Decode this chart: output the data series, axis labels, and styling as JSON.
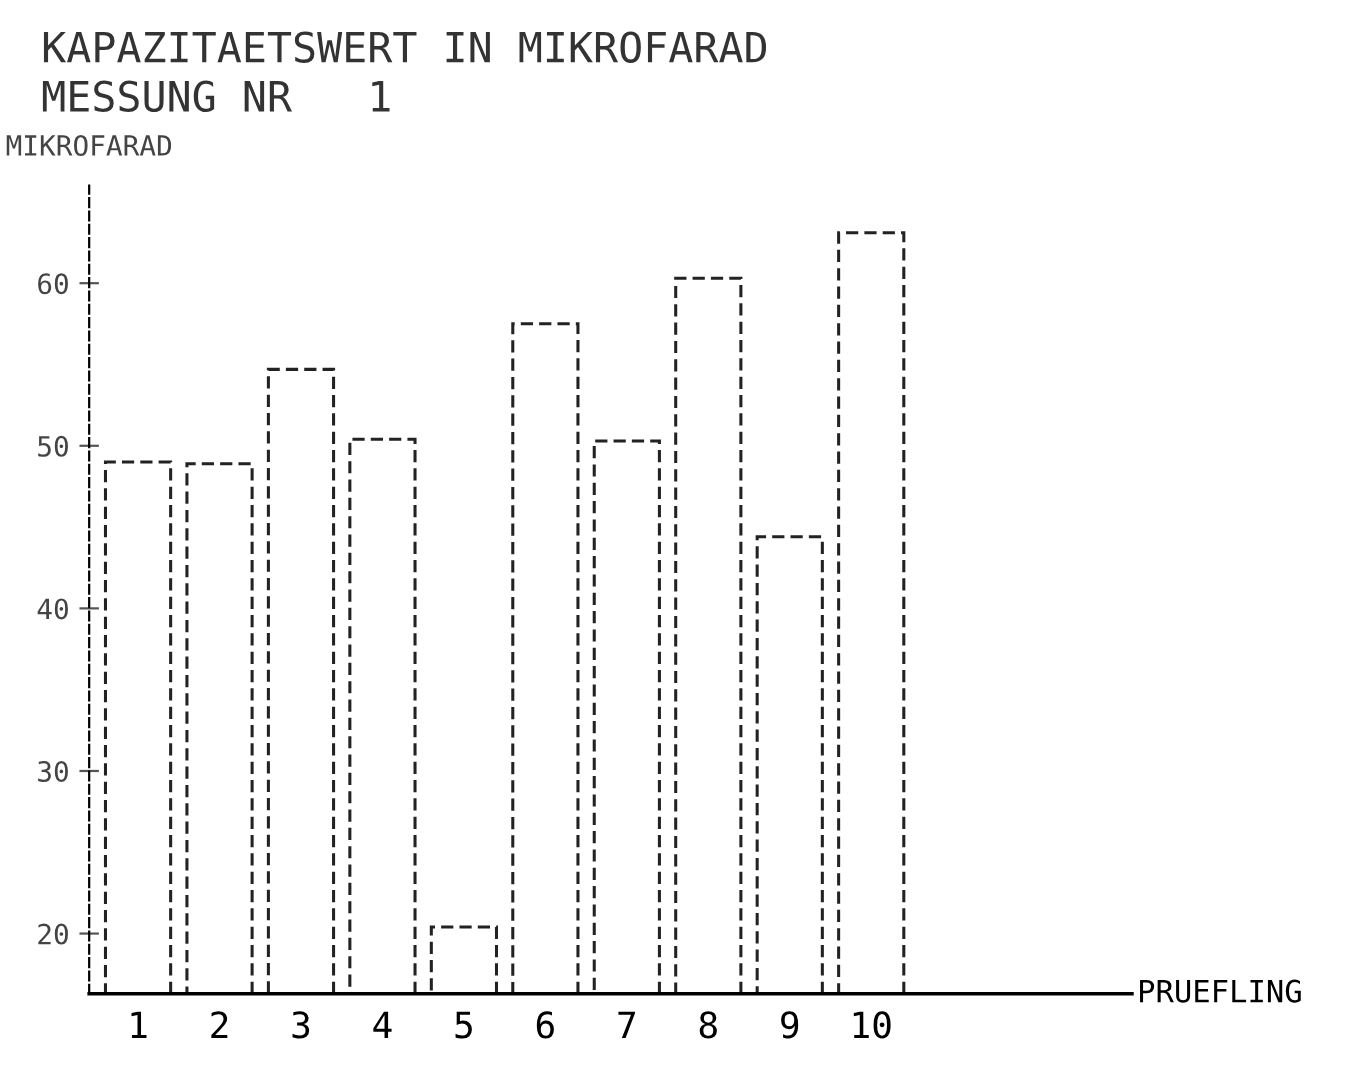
{
  "chart_data": {
    "type": "bar",
    "title": "KAPAZITAETSWERT IN MIKROFARAD",
    "subtitle": "MESSUNG NR   1",
    "ylabel": "MIKROFARAD",
    "annotations": [
      "PRUEFLING"
    ],
    "categories": [
      "1",
      "2",
      "3",
      "4",
      "5",
      "6",
      "7",
      "8",
      "9",
      "10"
    ],
    "values": [
      49.0,
      48.9,
      54.7,
      50.4,
      20.4,
      57.5,
      50.3,
      60.3,
      44.4,
      63.1
    ],
    "color": "#ffffff",
    "line_style": "dashed",
    "ylim": [
      16.3,
      66
    ],
    "yticks": [
      20,
      30,
      40,
      50,
      60
    ],
    "grid": false,
    "legend": false
  }
}
